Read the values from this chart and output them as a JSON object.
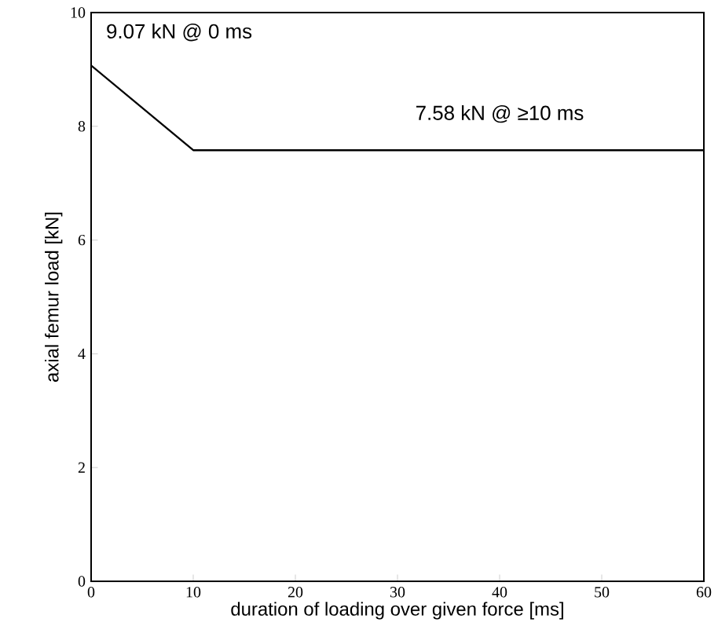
{
  "chart_data": {
    "type": "line",
    "xlabel": "duration of loading over given force [ms]",
    "ylabel": "axial femur load [kN]",
    "x": [
      0,
      10,
      60
    ],
    "values": [
      9.07,
      7.58,
      7.58
    ],
    "color": "#000000",
    "xlim": [
      0,
      60
    ],
    "xticks": [
      0,
      10,
      20,
      30,
      40,
      50,
      60
    ],
    "ylim": [
      0,
      10
    ],
    "yticks": [
      0,
      2,
      4,
      6,
      8,
      10
    ],
    "grid": false,
    "marker": "none",
    "line_style": "solid",
    "annotations": [
      {
        "text": "9.07 kN @ 0 ms",
        "x": 0,
        "y": 9.07
      },
      {
        "text": "7.58 kN @ ≥10 ms",
        "x": 40,
        "y": 7.58
      }
    ]
  }
}
